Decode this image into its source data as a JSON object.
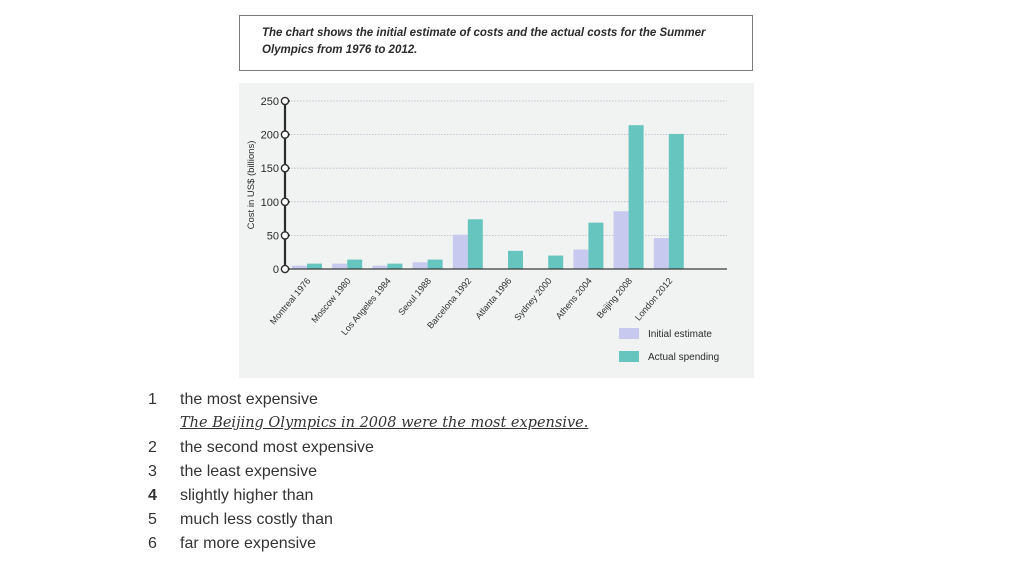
{
  "caption": "The chart shows the initial estimate of costs and the actual costs for the Summer Olympics from 1976 to 2012.",
  "chart_data": {
    "type": "bar",
    "title": "",
    "xlabel": "",
    "ylabel": "Cost in US$ (billions)",
    "ylim": [
      0,
      250
    ],
    "yticks": [
      0,
      50,
      100,
      150,
      200,
      250
    ],
    "grid": true,
    "legend_position": "bottom-right",
    "categories": [
      "Montreal 1976",
      "Moscow 1980",
      "Los Angeles 1984",
      "Seoul 1988",
      "Barcelona 1992",
      "Atlanta 1996",
      "Sydney 2000",
      "Athens 2004",
      "Beijing 2008",
      "London 2012"
    ],
    "series": [
      {
        "name": "Initial estimate",
        "color": "#c7caee",
        "values": [
          5,
          8,
          5,
          10,
          51,
          0,
          0,
          29,
          86,
          46
        ]
      },
      {
        "name": "Actual spending",
        "color": "#66c6bf",
        "values": [
          8,
          14,
          8,
          14,
          74,
          27,
          20,
          69,
          214,
          201
        ]
      }
    ]
  },
  "exercise": {
    "items": [
      {
        "number": "1",
        "text": "the most expensive",
        "answer": "The Beijing Olympics in 2008 were the most expensive."
      },
      {
        "number": "2",
        "text": "the second most expensive"
      },
      {
        "number": "3",
        "text": "the least expensive"
      },
      {
        "number": "4",
        "text": "slightly higher than"
      },
      {
        "number": "5",
        "text": "much less costly than"
      },
      {
        "number": "6",
        "text": "far more expensive"
      }
    ]
  }
}
